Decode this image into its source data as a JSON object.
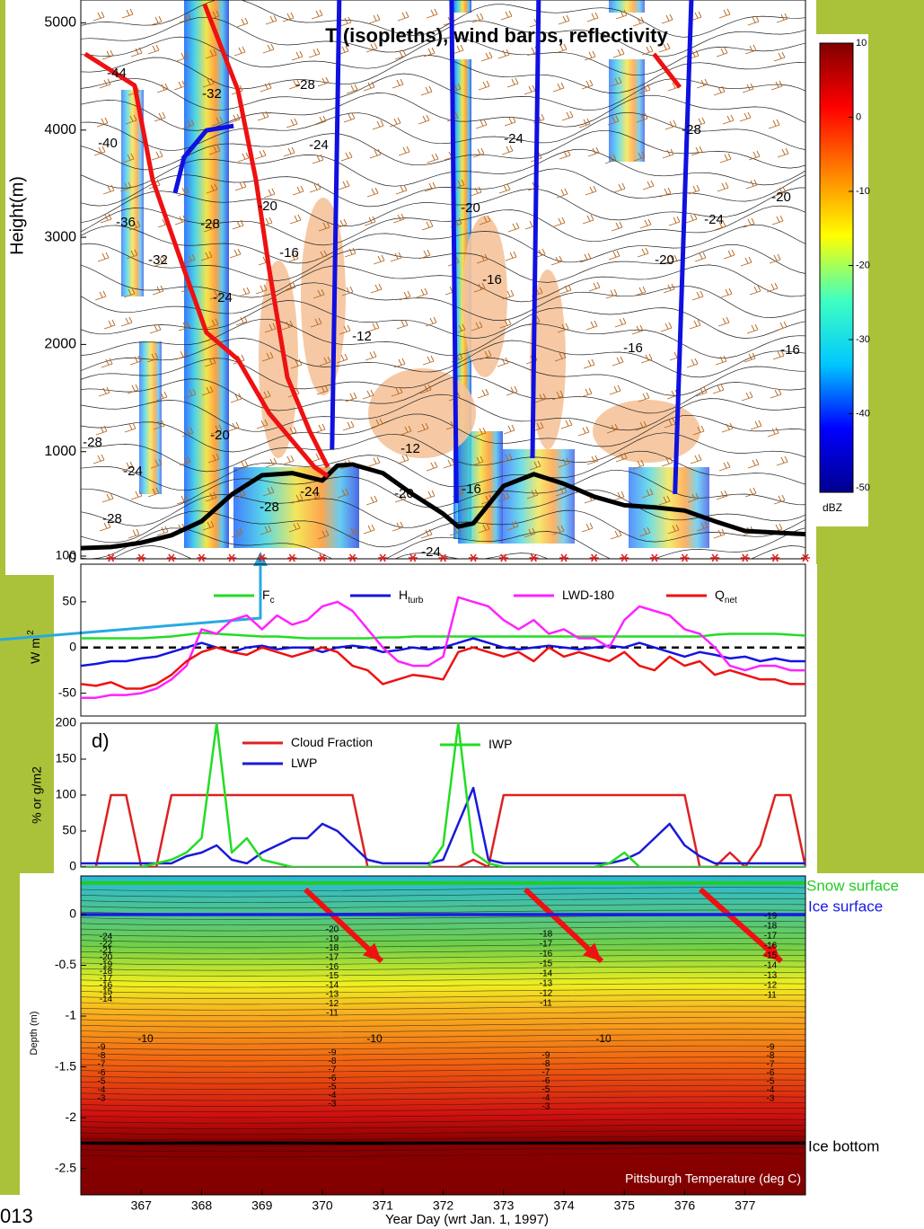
{
  "page": {
    "corner_text": "013"
  },
  "chart_data": [
    {
      "type": "line",
      "title": "T (isopleths), wind barbs, reflectivity",
      "ylabel": "Height(m)",
      "xlim": [
        366,
        378
      ],
      "ylim": [
        0,
        5214
      ],
      "yticks": [
        0,
        1000,
        2000,
        3000,
        4000,
        5000
      ],
      "series": [
        {
          "color": "#000000",
          "x": [
            366,
            366.5,
            367,
            367.5,
            368,
            368.5,
            369,
            369.5,
            370,
            370.25,
            370.5,
            371,
            371.5,
            372,
            372.25,
            372.5,
            373,
            373.5,
            374,
            374.5,
            375,
            375.5,
            376,
            376.5,
            377,
            378
          ],
          "values": [
            100,
            110,
            150,
            220,
            350,
            600,
            780,
            800,
            730,
            870,
            880,
            800,
            600,
            420,
            300,
            330,
            680,
            790,
            700,
            580,
            500,
            480,
            450,
            350,
            260,
            230
          ]
        },
        {
          "color": "#ee1111",
          "x": [
            366.07,
            366.89,
            367.19,
            367.71,
            368.08,
            368.6,
            369.12,
            369.87,
            370.09
          ],
          "values": [
            4711,
            4417,
            3537,
            2699,
            2112,
            1861,
            1358,
            855,
            771
          ]
        },
        {
          "color": "#ee1111",
          "x": [
            368.05,
            368.6,
            368.9,
            369.12,
            369.42,
            369.79,
            370.09
          ],
          "values": [
            5172,
            4375,
            3537,
            2699,
            1693,
            1190,
            855
          ]
        },
        {
          "color": "#ee1111",
          "x": [
            375.49,
            375.92
          ],
          "values": [
            4711,
            4400
          ]
        },
        {
          "color": "#1010e0",
          "x": [
            367.56,
            367.71,
            368.08,
            368.53
          ],
          "values": [
            3412,
            3747,
            3998,
            4040
          ]
        },
        {
          "color": "#1010e0",
          "x": [
            370.16,
            370.28
          ],
          "values": [
            1023,
            5214
          ]
        },
        {
          "color": "#1010e0",
          "x": [
            372.14,
            372.22
          ],
          "values": [
            5214,
            520
          ]
        },
        {
          "color": "#1010e0",
          "x": [
            373.58,
            373.48
          ],
          "values": [
            5214,
            939
          ]
        },
        {
          "color": "#1010e0",
          "x": [
            376.11,
            375.84
          ],
          "values": [
            5214,
            604
          ]
        }
      ],
      "sonde_x": [
        366.5,
        367,
        367.5,
        368,
        368.5,
        369,
        369.5,
        370,
        370.5,
        371,
        371.5,
        372,
        372.5,
        373,
        373.5,
        374,
        374.5,
        375,
        375.5,
        376,
        376.5,
        377,
        377.5,
        378
      ],
      "sonde_color": "#dd2222",
      "contour_labels": [
        "-44",
        "-40",
        "-36",
        "-32",
        "-28",
        "-24",
        "-32",
        "-28",
        "-24",
        "-16",
        "-12",
        "-20",
        "-24",
        "-20",
        "-16",
        "-20",
        "-16",
        "-24",
        "-20",
        "-16",
        "-28",
        "-12",
        "-20",
        "-28",
        "-24",
        "-28",
        "-16",
        "-24",
        "-20",
        "-28",
        "-24"
      ]
    },
    {
      "type": "colorbar",
      "label": "dBZ",
      "ylim": [
        -50.6,
        10
      ],
      "yticks": [
        10,
        0,
        -10,
        -20,
        -30,
        -40,
        -50
      ],
      "colormap": [
        "#00008f",
        "#0000ff",
        "#00c8ff",
        "#40ffc0",
        "#ffff00",
        "#ff8000",
        "#ff0000",
        "#800000"
      ]
    },
    {
      "type": "line",
      "ylabel": "W m",
      "ylabel_sup": "-2",
      "xlim": [
        366,
        378
      ],
      "ylim": [
        -75,
        100
      ],
      "yticks": [
        -50,
        0,
        50,
        100
      ],
      "reference_line": 0,
      "x": [
        366,
        366.25,
        366.5,
        366.75,
        367,
        367.25,
        367.5,
        367.75,
        368,
        368.25,
        368.5,
        368.75,
        369,
        369.25,
        369.5,
        369.75,
        370,
        370.25,
        370.5,
        370.75,
        371,
        371.25,
        371.5,
        371.75,
        372,
        372.25,
        372.5,
        372.75,
        373,
        373.25,
        373.5,
        373.75,
        374,
        374.25,
        374.5,
        374.75,
        375,
        375.25,
        375.5,
        375.75,
        376,
        376.25,
        376.5,
        376.75,
        377,
        377.25,
        377.5,
        377.75,
        378
      ],
      "series": [
        {
          "name": "F",
          "subscript": "c",
          "color": "#22dd22",
          "values": [
            10,
            10,
            10,
            10,
            10,
            11,
            12,
            14,
            16,
            15,
            14,
            13,
            12,
            12,
            11,
            10,
            10,
            10,
            10,
            10,
            11,
            11,
            12,
            12,
            12,
            12,
            12,
            12,
            12,
            12,
            12,
            12,
            12,
            12,
            12,
            12,
            12,
            12,
            12,
            12,
            12,
            12,
            14,
            15,
            15,
            15,
            15,
            14,
            13
          ]
        },
        {
          "name": "H",
          "subscript": "turb",
          "color": "#1414e0",
          "values": [
            -20,
            -18,
            -15,
            -15,
            -12,
            -10,
            -5,
            0,
            5,
            0,
            -5,
            0,
            2,
            -2,
            0,
            0,
            -5,
            0,
            2,
            0,
            -5,
            -3,
            0,
            -2,
            0,
            5,
            10,
            5,
            0,
            -2,
            0,
            2,
            0,
            -2,
            0,
            2,
            0,
            5,
            0,
            -5,
            -10,
            -5,
            -8,
            -12,
            -10,
            -15,
            -12,
            -15,
            -15
          ]
        },
        {
          "name": "LWD-180",
          "color": "#ff22ff",
          "values": [
            -55,
            -55,
            -52,
            -52,
            -50,
            -45,
            -35,
            -20,
            20,
            15,
            30,
            35,
            20,
            35,
            25,
            30,
            45,
            50,
            40,
            20,
            0,
            -15,
            -20,
            -20,
            -10,
            55,
            50,
            45,
            30,
            20,
            30,
            15,
            20,
            10,
            10,
            0,
            30,
            45,
            40,
            35,
            20,
            15,
            0,
            -20,
            -25,
            -20,
            -20,
            -25,
            -25
          ]
        },
        {
          "name": "Q",
          "subscript": "net",
          "color": "#ee1111",
          "values": [
            -40,
            -42,
            -38,
            -45,
            -45,
            -40,
            -30,
            -15,
            -5,
            0,
            -5,
            -8,
            0,
            -5,
            -10,
            -5,
            0,
            -5,
            -20,
            -25,
            -40,
            -35,
            -30,
            -32,
            -35,
            -5,
            0,
            -5,
            -10,
            -5,
            -15,
            0,
            -10,
            -5,
            -10,
            -15,
            -5,
            -20,
            -25,
            -10,
            -20,
            -15,
            -30,
            -25,
            -30,
            -35,
            -35,
            -40,
            -40
          ]
        }
      ]
    },
    {
      "type": "line",
      "panel_label": "d)",
      "ylabel": "% or g/m2",
      "xlim": [
        366,
        378
      ],
      "ylim": [
        0,
        200
      ],
      "yticks": [
        0,
        50,
        100,
        150,
        200
      ],
      "x": [
        366,
        366.25,
        366.5,
        366.75,
        367,
        367.25,
        367.5,
        367.75,
        368,
        368.25,
        368.5,
        368.75,
        369,
        369.25,
        369.5,
        369.75,
        370,
        370.25,
        370.5,
        370.75,
        371,
        371.25,
        371.5,
        371.75,
        372,
        372.25,
        372.5,
        372.75,
        373,
        373.25,
        373.5,
        373.75,
        374,
        374.25,
        374.5,
        374.75,
        375,
        375.25,
        375.5,
        375.75,
        376,
        376.25,
        376.5,
        376.75,
        377,
        377.25,
        377.5,
        377.75,
        378
      ],
      "series": [
        {
          "name": "Cloud Fraction",
          "color": "#dd2222",
          "values": [
            0,
            0,
            100,
            100,
            0,
            0,
            100,
            100,
            100,
            100,
            100,
            100,
            100,
            100,
            100,
            100,
            100,
            100,
            100,
            0,
            0,
            0,
            0,
            0,
            0,
            0,
            10,
            0,
            100,
            100,
            100,
            100,
            100,
            100,
            100,
            100,
            100,
            100,
            100,
            100,
            100,
            0,
            0,
            20,
            0,
            30,
            100,
            100,
            0
          ]
        },
        {
          "name": "LWP",
          "color": "#1a1ad8",
          "values": [
            5,
            5,
            5,
            5,
            5,
            5,
            5,
            15,
            20,
            30,
            10,
            5,
            20,
            30,
            40,
            40,
            60,
            50,
            30,
            10,
            5,
            5,
            5,
            5,
            10,
            60,
            110,
            10,
            5,
            5,
            5,
            5,
            5,
            5,
            5,
            5,
            10,
            20,
            40,
            60,
            30,
            15,
            5,
            5,
            5,
            5,
            5,
            5,
            5
          ]
        },
        {
          "name": "IWP",
          "color": "#22dd22",
          "values": [
            0,
            0,
            0,
            0,
            0,
            5,
            10,
            20,
            40,
            200,
            20,
            40,
            10,
            5,
            0,
            0,
            0,
            0,
            0,
            0,
            0,
            0,
            0,
            0,
            30,
            200,
            20,
            5,
            0,
            0,
            0,
            0,
            0,
            0,
            0,
            5,
            20,
            0,
            0,
            0,
            0,
            0,
            0,
            0,
            0,
            0,
            0,
            0,
            0
          ]
        }
      ]
    },
    {
      "type": "contour",
      "ylabel": "Depth (m)",
      "xlabel": "Year Day (wrt Jan. 1, 1997)",
      "annotation": "Pittsburgh Temperature (deg C)",
      "xlim": [
        366,
        378
      ],
      "xticks": [
        367,
        368,
        369,
        370,
        371,
        372,
        373,
        374,
        375,
        376,
        377
      ],
      "ylim": [
        -2.76,
        0.38
      ],
      "yticks": [
        0,
        -0.5,
        -1,
        -1.5,
        -2,
        -2.5
      ],
      "surfaces": [
        {
          "name": "Snow surface",
          "depth": 0.31,
          "color": "#22cc22"
        },
        {
          "name": "Ice surface",
          "depth": 0,
          "color": "#1a1ae6"
        },
        {
          "name": "Ice bottom",
          "depth": -2.25,
          "color": "#000000"
        }
      ],
      "contour_label_columns": [
        [
          "-24",
          "-22",
          "-21",
          "-20",
          "-19",
          "-18",
          "-17",
          "-16",
          "-15",
          "-14"
        ],
        [
          "-9",
          "-8",
          "-7",
          "-6",
          "-5",
          "-4",
          "-3"
        ],
        [
          "-20",
          "-19",
          "-18",
          "-17",
          "-16",
          "-15",
          "-14",
          "-13",
          "-12",
          "-11"
        ],
        [
          "-9",
          "-8",
          "-7",
          "-6",
          "-5",
          "-4",
          "-3"
        ],
        [
          "-18",
          "-17",
          "-16",
          "-15",
          "-14",
          "-13",
          "-12",
          "-11"
        ],
        [
          "-9",
          "-8",
          "-7",
          "-6",
          "-5",
          "-4",
          "-3"
        ],
        [
          "-19",
          "-18",
          "-17",
          "-16",
          "-15",
          "-14",
          "-13",
          "-12",
          "-11"
        ],
        [
          "-9",
          "-8",
          "-7",
          "-6",
          "-5",
          "-4",
          "-3"
        ],
        [
          "-10",
          "-10",
          "-10"
        ]
      ]
    }
  ]
}
